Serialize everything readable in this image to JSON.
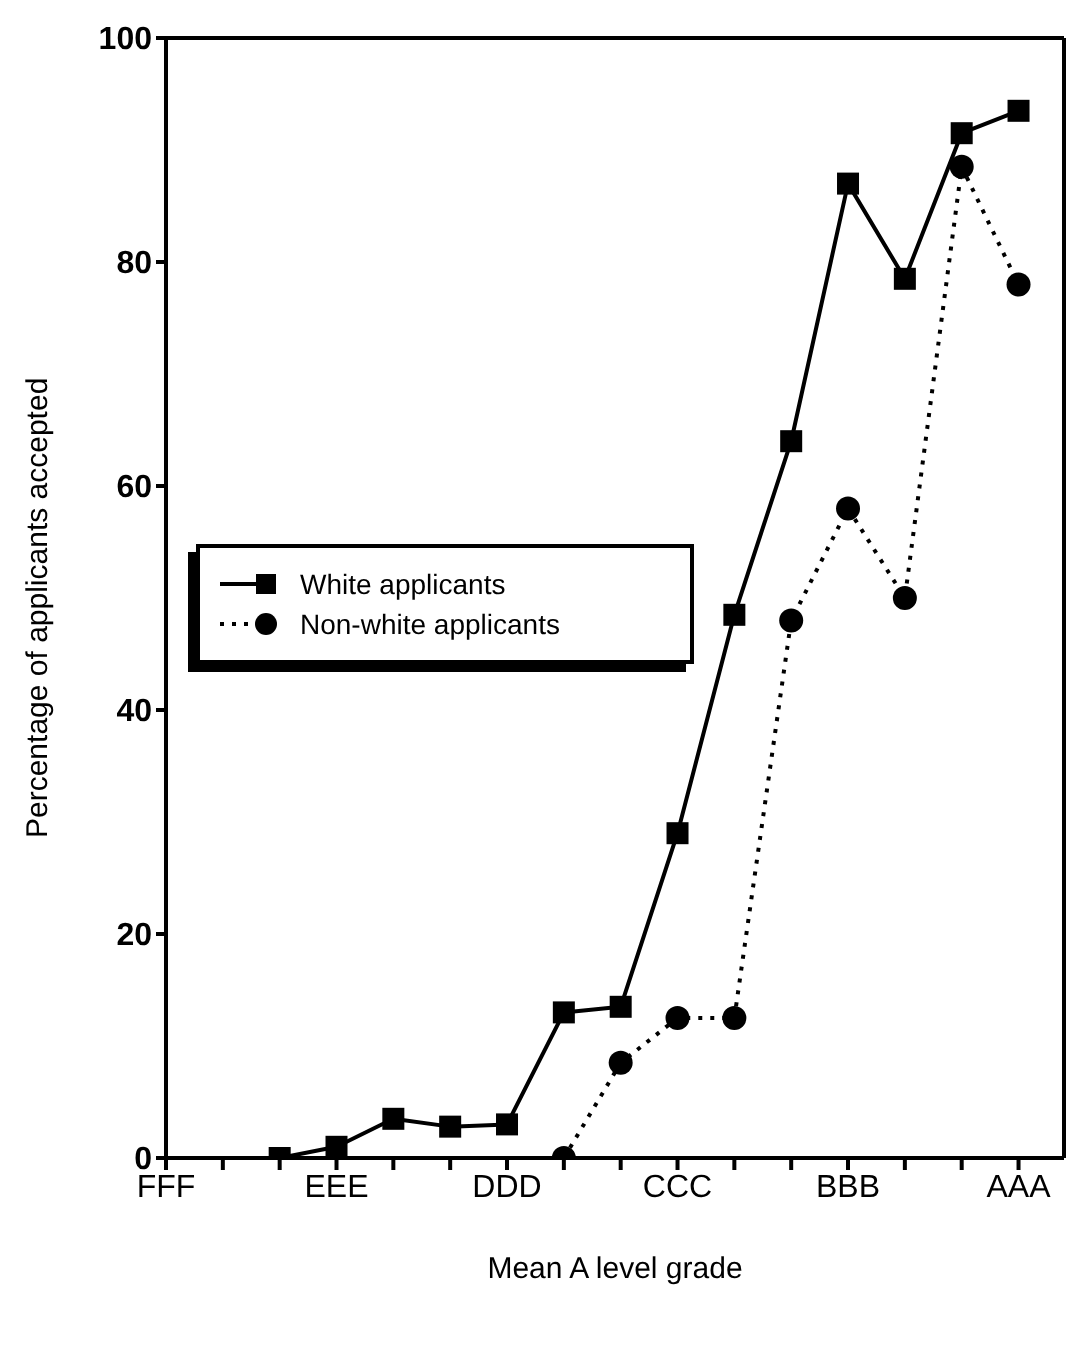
{
  "chart_data": {
    "type": "line",
    "xlabel": "Mean A level grade",
    "ylabel": "Percentage of applicants accepted",
    "categories": [
      "FFF",
      null,
      null,
      "EEE",
      null,
      null,
      "DDD",
      null,
      null,
      "CCC",
      null,
      null,
      "BBB",
      null,
      null,
      "AAA"
    ],
    "series": [
      {
        "name": "White applicants",
        "color": "#000000",
        "marker": "square",
        "line_style": "solid",
        "values": [
          null,
          null,
          0,
          1,
          3.5,
          2.8,
          3,
          13,
          13.5,
          29,
          48.5,
          64,
          87,
          78.5,
          91.5,
          93.5
        ]
      },
      {
        "name": "Non-white applicants",
        "color": "#000000",
        "marker": "circle",
        "line_style": "dotted",
        "values": [
          null,
          null,
          null,
          null,
          null,
          null,
          null,
          0,
          8.5,
          12.5,
          12.5,
          48,
          58,
          50,
          88.5,
          78
        ]
      }
    ],
    "ylim": [
      0,
      100
    ],
    "yticks": [
      0,
      20,
      40,
      60,
      80,
      100
    ],
    "grid": false,
    "legend": "left"
  }
}
